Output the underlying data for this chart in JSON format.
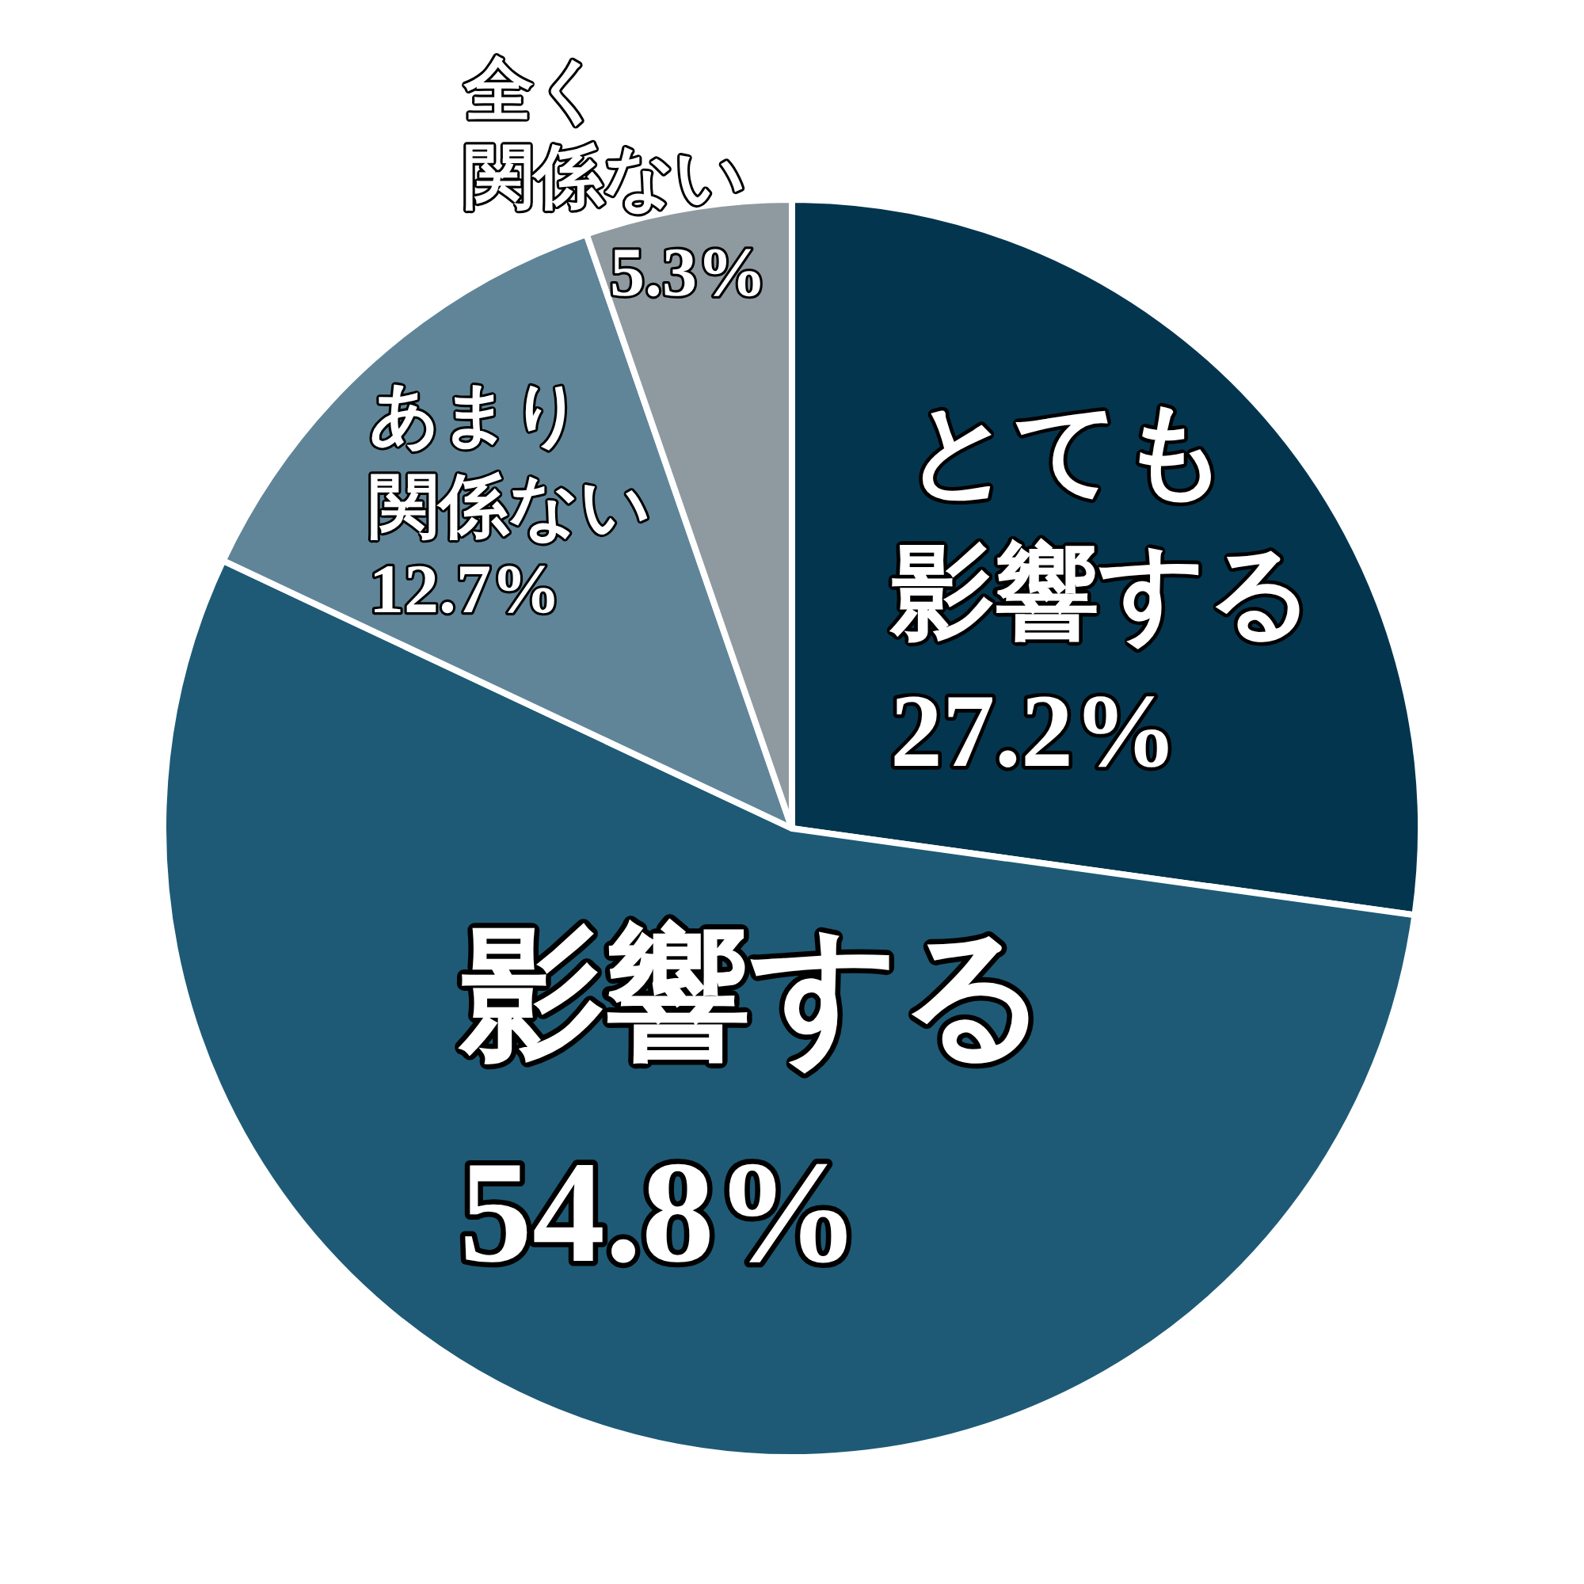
{
  "chart_data": {
    "type": "pie",
    "categories": [
      "とても影響する",
      "影響する",
      "あまり関係ない",
      "全く関係ない"
    ],
    "values": [
      27.2,
      54.8,
      12.7,
      5.3
    ],
    "colors": [
      "#04354f",
      "#1e5a75",
      "#608598",
      "#8f9aa0"
    ],
    "value_labels": [
      "27.2%",
      "54.8%",
      "12.7%",
      "5.3%"
    ]
  }
}
